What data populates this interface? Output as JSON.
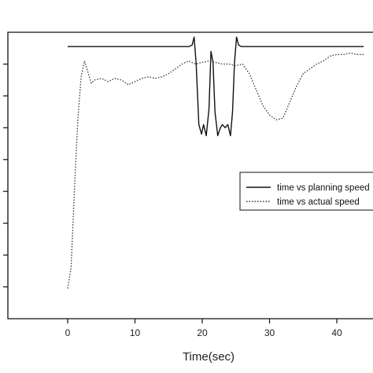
{
  "chart_data": {
    "type": "line",
    "title": "",
    "xlabel": "Time(sec)",
    "ylabel": "",
    "xlim": [
      -9.5,
      44.5
    ],
    "ylim": [
      0,
      9
    ],
    "x_ticks": [
      0,
      10,
      20,
      30,
      40
    ],
    "y_ticks": [
      1,
      2,
      3,
      4,
      5,
      6,
      7,
      8
    ],
    "grid": false,
    "legend_position": "right",
    "series": [
      {
        "name": "time vs planning speed",
        "style": "solid",
        "color": "#111111",
        "x": [
          0,
          18,
          18.5,
          18.8,
          19.1,
          19.5,
          19.9,
          20.2,
          20.6,
          21.0,
          21.3,
          21.6,
          21.9,
          22.3,
          22.7,
          23.0,
          23.4,
          23.8,
          24.2,
          24.5,
          24.8,
          25.1,
          25.4,
          25.8,
          26.2,
          44
        ],
        "y": [
          8.55,
          8.55,
          8.6,
          8.85,
          8.0,
          6.1,
          5.8,
          6.1,
          5.75,
          6.6,
          8.4,
          8.05,
          6.5,
          5.75,
          6.0,
          6.1,
          6.0,
          6.1,
          5.75,
          6.5,
          8.05,
          8.85,
          8.6,
          8.55,
          8.55,
          8.55
        ]
      },
      {
        "name": "time vs actual speed",
        "style": "dotted",
        "color": "#333333",
        "x": [
          0,
          0.5,
          1.0,
          1.5,
          2.0,
          2.5,
          3.0,
          3.5,
          4.0,
          5.0,
          6.0,
          7.0,
          8.0,
          9.0,
          10.0,
          11.0,
          12.0,
          13.0,
          14.0,
          15.0,
          16.0,
          17.0,
          18.0,
          19.0,
          20.0,
          21.0,
          22.0,
          23.0,
          24.0,
          25.0,
          26.0,
          27.0,
          28.0,
          29.0,
          30.0,
          31.0,
          32.0,
          33.0,
          34.0,
          35.0,
          36.0,
          37.0,
          38.0,
          39.0,
          40.0,
          41.0,
          42.0,
          43.0,
          44.0
        ],
        "y": [
          0.95,
          1.6,
          4.0,
          6.2,
          7.6,
          8.1,
          7.75,
          7.4,
          7.5,
          7.55,
          7.45,
          7.55,
          7.5,
          7.35,
          7.45,
          7.55,
          7.6,
          7.55,
          7.6,
          7.7,
          7.85,
          8.0,
          8.1,
          8.0,
          8.05,
          8.1,
          8.05,
          8.0,
          8.0,
          7.95,
          8.0,
          7.7,
          7.2,
          6.7,
          6.4,
          6.25,
          6.3,
          6.8,
          7.3,
          7.7,
          7.85,
          8.0,
          8.1,
          8.25,
          8.3,
          8.3,
          8.35,
          8.3,
          8.3
        ]
      }
    ]
  },
  "legend": {
    "entries": [
      "time vs planning speed",
      "time vs actual speed"
    ]
  }
}
